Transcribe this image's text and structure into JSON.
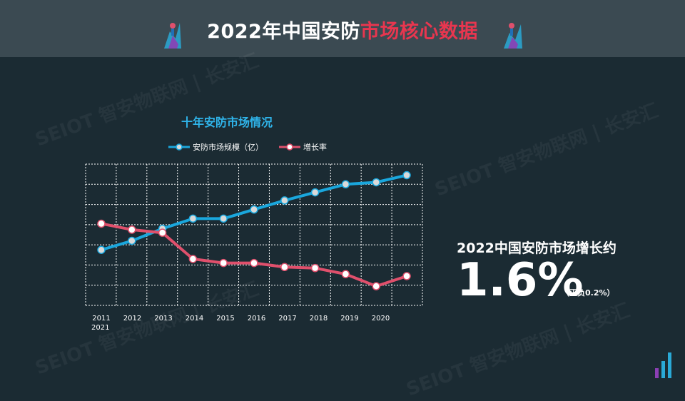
{
  "slide": {
    "title_main": "2022年中国安防",
    "title_highlight": "市场核心数据",
    "watermark": "SEIOT 智安物联网 | 长安汇"
  },
  "colors": {
    "background": "#1b2b33",
    "banner": "#3b4a52",
    "highlight": "#e8364f",
    "scale_series": "#1aa7dd",
    "growth_series": "#e0506c",
    "chart_title": "#2fb4ea"
  },
  "stat": {
    "heading": "2022中国安防市场增长约",
    "value": "1.6%",
    "note": "（正负0.2%）"
  },
  "chart_data": {
    "type": "line",
    "title": "十年安防市场情况",
    "categories": [
      "2011",
      "2012",
      "2013",
      "2014",
      "2015",
      "2016",
      "2017",
      "2018",
      "2019",
      "2020",
      "2021"
    ],
    "tick_labels": [
      "2011",
      "2012",
      "2013",
      "2014",
      "2015",
      "2016",
      "2017",
      "2018",
      "2019",
      "2020",
      "2021"
    ],
    "grid": true,
    "legend_position": "top",
    "ylim": [
      0,
      7
    ],
    "series": [
      {
        "name": "安防市场规模（亿）",
        "color": "#1aa7dd",
        "values": [
          2.75,
          3.2,
          3.8,
          4.3,
          4.3,
          4.75,
          5.2,
          5.6,
          6.0,
          6.1,
          6.45
        ]
      },
      {
        "name": "增长率",
        "color": "#e0506c",
        "values": [
          4.05,
          3.75,
          3.6,
          2.3,
          2.1,
          2.1,
          1.9,
          1.85,
          1.55,
          0.95,
          1.45
        ]
      }
    ]
  }
}
